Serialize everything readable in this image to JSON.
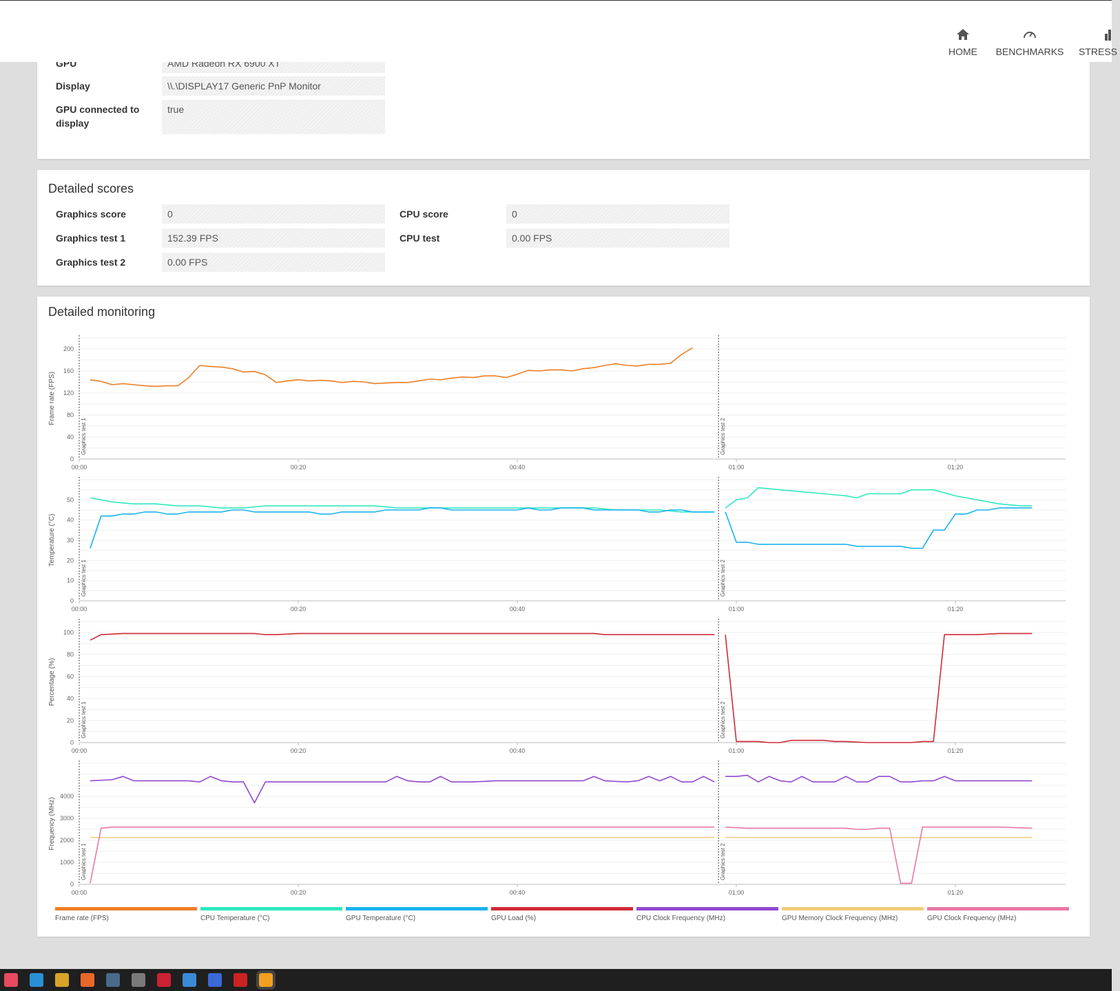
{
  "nav": {
    "home": "HOME",
    "benchmarks": "BENCHMARKS",
    "stress": "STRESS"
  },
  "system_info": {
    "gpu_label": "GPU",
    "gpu_value": "AMD Radeon RX 6900 XT",
    "display_label": "Display",
    "display_value": "\\\\.\\DISPLAY17 Generic PnP Monitor",
    "gpu_connected_label": "GPU connected to display",
    "gpu_connected_value": "true"
  },
  "detailed_scores": {
    "title": "Detailed scores",
    "graphics_score_label": "Graphics score",
    "graphics_score_value": "0",
    "graphics_test1_label": "Graphics test 1",
    "graphics_test1_value": "152.39 FPS",
    "graphics_test2_label": "Graphics test 2",
    "graphics_test2_value": "0.00 FPS",
    "cpu_score_label": "CPU score",
    "cpu_score_value": "0",
    "cpu_test_label": "CPU test",
    "cpu_test_value": "0.00 FPS"
  },
  "monitoring": {
    "title": "Detailed monitoring",
    "legend": [
      {
        "label": "Frame rate (FPS)",
        "color": "#ee7f24"
      },
      {
        "label": "CPU Temperature (°C)",
        "color": "#2ee8c0"
      },
      {
        "label": "GPU Temperature (°C)",
        "color": "#1ab2ef"
      },
      {
        "label": "GPU Load (%)",
        "color": "#d12a38"
      },
      {
        "label": "CPU Clock Frequency (MHz)",
        "color": "#9248cf"
      },
      {
        "label": "GPU Memory Clock Frequency (MHz)",
        "color": "#f0cc7a"
      },
      {
        "label": "GPU Clock Frequency (MHz)",
        "color": "#e878a8"
      }
    ]
  },
  "taskbar": {
    "icons": [
      "app-drop-icon",
      "edge-icon",
      "chrome-icon",
      "firefox-icon",
      "steam-icon",
      "app-card-icon",
      "app-red-icon",
      "app-grid-icon",
      "app-window-icon",
      "app-adobe-icon",
      "app-3dmark-icon"
    ]
  },
  "chart_data": [
    {
      "type": "line",
      "ylabel": "Frame rate (FPS)",
      "xlabel": "",
      "x_ticks": [
        "00:00",
        "00:20",
        "00:40",
        "01:00",
        "01:20"
      ],
      "x_unit": "seconds",
      "xlim": [
        0,
        90
      ],
      "ylim": [
        0,
        220
      ],
      "y_ticks": [
        0,
        40,
        80,
        120,
        160,
        200
      ],
      "phases": [
        "Graphics test 1",
        "Graphics test 2"
      ],
      "phase_starts": [
        0,
        59
      ],
      "series": [
        {
          "name": "Frame rate (FPS)",
          "color": "#ee7f24",
          "x": [
            1,
            2,
            3,
            4,
            5,
            6,
            7,
            8,
            9,
            10,
            11,
            12,
            13,
            14,
            15,
            16,
            17,
            18,
            19,
            20,
            21,
            22,
            23,
            24,
            25,
            26,
            27,
            28,
            29,
            30,
            31,
            32,
            33,
            34,
            35,
            36,
            37,
            38,
            39,
            40,
            41,
            42,
            43,
            44,
            45,
            46,
            47,
            48,
            49,
            50,
            51,
            52,
            53,
            54,
            55,
            56
          ],
          "values": [
            144,
            141,
            135,
            137,
            135,
            133,
            132,
            133,
            133,
            148,
            170,
            168,
            167,
            164,
            158,
            159,
            153,
            139,
            142,
            144,
            142,
            143,
            142,
            139,
            141,
            140,
            137,
            138,
            139,
            139,
            142,
            145,
            144,
            147,
            149,
            148,
            151,
            151,
            148,
            154,
            161,
            160,
            162,
            162,
            160,
            164,
            166,
            170,
            173,
            170,
            169,
            172,
            172,
            174,
            190,
            202
          ]
        }
      ]
    },
    {
      "type": "line",
      "ylabel": "Temperature (°C)",
      "xlabel": "",
      "x_ticks": [
        "00:00",
        "00:20",
        "00:40",
        "01:00",
        "01:20"
      ],
      "x_unit": "seconds",
      "xlim": [
        0,
        90
      ],
      "ylim": [
        0,
        60
      ],
      "y_ticks": [
        0,
        10,
        20,
        30,
        40,
        50
      ],
      "phases": [
        "Graphics test 1",
        "Graphics test 2"
      ],
      "phase_starts": [
        0,
        59
      ],
      "series": [
        {
          "name": "CPU Temperature (°C)",
          "color": "#2ee8c0",
          "x": [
            1,
            3,
            5,
            7,
            9,
            11,
            13,
            15,
            17,
            19,
            21,
            23,
            25,
            27,
            29,
            31,
            33,
            35,
            37,
            39,
            41,
            43,
            45,
            47,
            49,
            51,
            53,
            55,
            57,
            58
          ],
          "values": [
            51,
            49,
            48,
            48,
            47,
            47,
            46,
            46,
            47,
            47,
            47,
            47,
            47,
            47,
            46,
            46,
            46,
            46,
            46,
            46,
            46,
            46,
            46,
            46,
            45,
            45,
            45,
            44,
            44,
            44
          ]
        },
        {
          "name": "CPU Temperature (°C)",
          "color": "#2ee8c0",
          "x": [
            59,
            60,
            61,
            62,
            64,
            66,
            68,
            70,
            71,
            72,
            74,
            75,
            76,
            78,
            80,
            82,
            84,
            86,
            87
          ],
          "values": [
            46,
            50,
            51,
            56,
            55,
            54,
            53,
            52,
            51,
            53,
            53,
            53,
            55,
            55,
            52,
            50,
            48,
            47,
            47
          ]
        },
        {
          "name": "GPU Temperature (°C)",
          "color": "#1ab2ef",
          "x": [
            1,
            2,
            3,
            4,
            5,
            6,
            7,
            8,
            9,
            10,
            11,
            12,
            13,
            14,
            15,
            16,
            17,
            18,
            19,
            20,
            21,
            22,
            23,
            24,
            25,
            26,
            27,
            28,
            29,
            30,
            31,
            32,
            33,
            34,
            35,
            36,
            37,
            38,
            39,
            40,
            41,
            42,
            43,
            44,
            45,
            46,
            47,
            48,
            49,
            50,
            51,
            52,
            53,
            54,
            55,
            56,
            57,
            58
          ],
          "values": [
            26,
            42,
            42,
            43,
            43,
            44,
            44,
            43,
            43,
            44,
            44,
            44,
            44,
            45,
            45,
            44,
            44,
            44,
            44,
            44,
            44,
            43,
            43,
            44,
            44,
            44,
            44,
            45,
            45,
            45,
            45,
            46,
            46,
            45,
            45,
            45,
            45,
            45,
            45,
            45,
            46,
            45,
            45,
            46,
            46,
            46,
            45,
            45,
            45,
            45,
            45,
            44,
            44,
            45,
            45,
            44,
            44,
            44
          ]
        },
        {
          "name": "GPU Temperature (°C)",
          "color": "#1ab2ef",
          "x": [
            59,
            60,
            61,
            62,
            64,
            66,
            68,
            70,
            71,
            72,
            74,
            75,
            76,
            77,
            78,
            79,
            80,
            81,
            82,
            83,
            84,
            86,
            87
          ],
          "values": [
            44,
            29,
            29,
            28,
            28,
            28,
            28,
            28,
            27,
            27,
            27,
            27,
            26,
            26,
            35,
            35,
            43,
            43,
            45,
            45,
            46,
            46,
            46
          ]
        }
      ]
    },
    {
      "type": "line",
      "ylabel": "Percentage (%)",
      "xlabel": "",
      "x_ticks": [
        "00:00",
        "00:20",
        "00:40",
        "01:00",
        "01:20"
      ],
      "x_unit": "seconds",
      "xlim": [
        0,
        90
      ],
      "ylim": [
        0,
        110
      ],
      "y_ticks": [
        0,
        20,
        40,
        60,
        80,
        100
      ],
      "phases": [
        "Graphics test 1",
        "Graphics test 2"
      ],
      "phase_starts": [
        0,
        59
      ],
      "series": [
        {
          "name": "GPU Load (%)",
          "color": "#d12a38",
          "x": [
            1,
            2,
            4,
            8,
            12,
            16,
            17,
            18,
            20,
            30,
            40,
            47,
            48,
            52,
            58
          ],
          "values": [
            93,
            98,
            99,
            99,
            99,
            99,
            98,
            98,
            99,
            99,
            99,
            99,
            98,
            98,
            98
          ]
        },
        {
          "name": "GPU Load (%)",
          "color": "#d12a38",
          "x": [
            59,
            60,
            62,
            63,
            64,
            65,
            66,
            68,
            69,
            70,
            72,
            74,
            76,
            77,
            78,
            79,
            80,
            82,
            84,
            86,
            87
          ],
          "values": [
            98,
            1,
            1,
            0,
            0,
            2,
            2,
            2,
            1,
            1,
            0,
            0,
            0,
            1,
            1,
            98,
            98,
            98,
            99,
            99,
            99
          ]
        }
      ]
    },
    {
      "type": "line",
      "ylabel": "Frequency (MHz)",
      "xlabel": "",
      "x_ticks": [
        "00:00",
        "00:20",
        "00:40",
        "01:00",
        "01:20"
      ],
      "x_unit": "seconds",
      "xlim": [
        0,
        90
      ],
      "ylim": [
        0,
        5500
      ],
      "y_ticks": [
        0,
        1000,
        2000,
        3000,
        4000
      ],
      "phases": [
        "Graphics test 1",
        "Graphics test 2"
      ],
      "phase_starts": [
        0,
        59
      ],
      "series": [
        {
          "name": "CPU Clock Frequency (MHz)",
          "color": "#9248cf",
          "x": [
            1,
            3,
            4,
            5,
            6,
            8,
            9,
            10,
            11,
            12,
            13,
            14,
            15,
            16,
            17,
            18,
            20,
            22,
            24,
            26,
            28,
            29,
            30,
            31,
            32,
            33,
            34,
            36,
            38,
            40,
            42,
            44,
            46,
            47,
            48,
            50,
            51,
            52,
            53,
            54,
            55,
            56,
            57,
            58
          ],
          "values": [
            4700,
            4750,
            4900,
            4700,
            4700,
            4700,
            4700,
            4700,
            4650,
            4900,
            4700,
            4650,
            4650,
            3700,
            4650,
            4650,
            4650,
            4650,
            4650,
            4650,
            4650,
            4900,
            4700,
            4650,
            4650,
            4900,
            4650,
            4650,
            4700,
            4700,
            4700,
            4700,
            4700,
            4900,
            4700,
            4650,
            4700,
            4900,
            4700,
            4900,
            4650,
            4650,
            4900,
            4650
          ]
        },
        {
          "name": "CPU Clock Frequency (MHz)",
          "color": "#9248cf",
          "x": [
            59,
            60,
            61,
            62,
            63,
            64,
            65,
            66,
            67,
            68,
            69,
            70,
            71,
            72,
            73,
            74,
            75,
            76,
            77,
            78,
            79,
            80,
            82,
            84,
            86,
            87
          ],
          "values": [
            4900,
            4900,
            4950,
            4650,
            4900,
            4700,
            4650,
            4900,
            4650,
            4650,
            4650,
            4900,
            4650,
            4650,
            4900,
            4900,
            4650,
            4650,
            4700,
            4700,
            4900,
            4700,
            4700,
            4700,
            4700,
            4700
          ]
        },
        {
          "name": "GPU Memory Clock Frequency (MHz)",
          "color": "#f0cc7a",
          "x": [
            1,
            58
          ],
          "values": [
            2125,
            2125
          ]
        },
        {
          "name": "GPU Memory Clock Frequency (MHz)",
          "color": "#f0cc7a",
          "x": [
            59,
            87
          ],
          "values": [
            2125,
            2125
          ]
        },
        {
          "name": "GPU Clock Frequency (MHz)",
          "color": "#e878a8",
          "x": [
            1,
            2,
            3,
            10,
            20,
            30,
            40,
            50,
            58
          ],
          "values": [
            50,
            2550,
            2600,
            2600,
            2600,
            2600,
            2600,
            2600,
            2600
          ]
        },
        {
          "name": "GPU Clock Frequency (MHz)",
          "color": "#e878a8",
          "x": [
            59,
            61,
            64,
            68,
            70,
            71,
            72,
            73,
            74,
            75,
            76,
            77,
            78,
            80,
            84,
            87
          ],
          "values": [
            2600,
            2550,
            2550,
            2550,
            2550,
            2500,
            2500,
            2550,
            2550,
            50,
            50,
            2600,
            2600,
            2600,
            2600,
            2550
          ]
        }
      ]
    }
  ]
}
